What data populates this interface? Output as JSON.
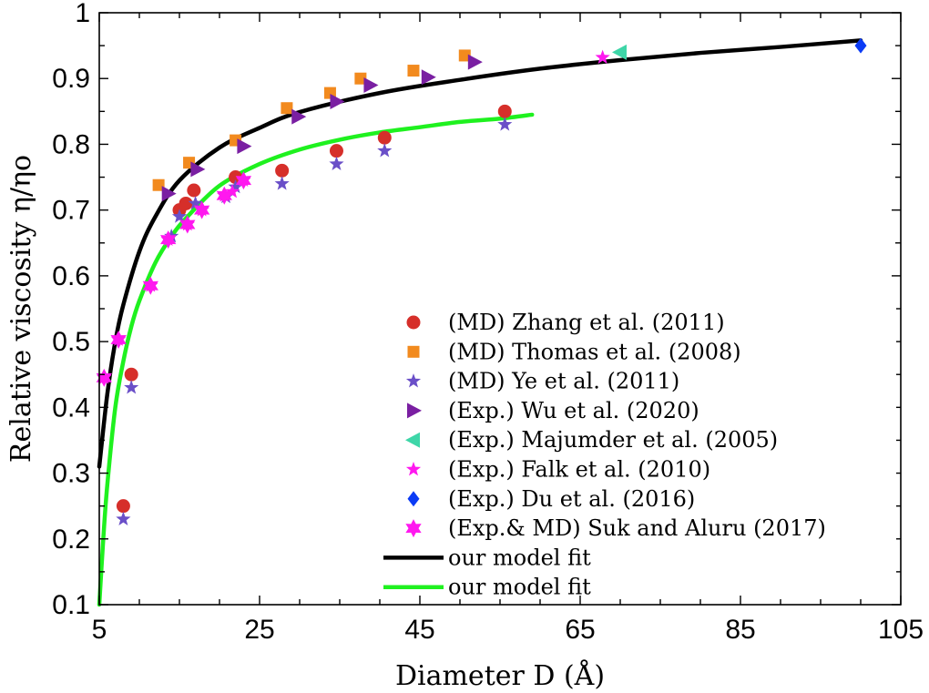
{
  "chart_data": {
    "type": "scatter",
    "title": "",
    "xlabel": "Diameter D (Å)",
    "ylabel": "Relative viscosity η/ηo",
    "xlim": [
      5,
      105
    ],
    "ylim": [
      0.1,
      1.0
    ],
    "xticks": [
      5,
      25,
      45,
      65,
      85,
      105
    ],
    "yticks": [
      0.1,
      0.2,
      0.3,
      0.4,
      0.5,
      0.6,
      0.7,
      0.8,
      0.9,
      1.0
    ],
    "xtick_labels": [
      "5",
      "25",
      "45",
      "65",
      "85",
      "105"
    ],
    "ytick_labels": [
      "0.1",
      "0.2",
      "0.3",
      "0.4",
      "0.5",
      "0.6",
      "0.7",
      "0.8",
      "0.9",
      "1"
    ],
    "grid": false,
    "legend_position": "lower-right",
    "series": [
      {
        "name": "(MD) Zhang et al. (2011)",
        "marker": "circle",
        "color": "#d62f2a",
        "x": [
          8.0,
          9.0,
          15.0,
          15.8,
          16.8,
          22.0,
          27.8,
          34.6,
          40.6,
          55.6
        ],
        "y": [
          0.25,
          0.45,
          0.7,
          0.71,
          0.73,
          0.75,
          0.76,
          0.79,
          0.81,
          0.85
        ]
      },
      {
        "name": "(MD) Thomas et al. (2008)",
        "marker": "square",
        "color": "#f28a1e",
        "x": [
          12.4,
          16.2,
          22.0,
          28.4,
          33.8,
          37.6,
          44.2,
          50.6
        ],
        "y": [
          0.738,
          0.772,
          0.806,
          0.855,
          0.878,
          0.9,
          0.912,
          0.935
        ]
      },
      {
        "name": "(MD) Ye et al. (2011)",
        "marker": "star",
        "color": "#6a4fc8",
        "x": [
          8.0,
          9.0,
          14.0,
          15.0,
          17.0,
          20.8,
          22.0,
          27.8,
          34.6,
          40.6,
          55.6
        ],
        "y": [
          0.23,
          0.43,
          0.66,
          0.69,
          0.71,
          0.72,
          0.735,
          0.74,
          0.77,
          0.79,
          0.83
        ]
      },
      {
        "name": "(Exp.) Wu et al. (2020)",
        "marker": "triangle-right",
        "color": "#7a1fa2",
        "x": [
          13.6,
          17.2,
          23.0,
          29.8,
          34.6,
          38.8,
          46.0,
          51.8
        ],
        "y": [
          0.725,
          0.762,
          0.797,
          0.842,
          0.865,
          0.89,
          0.902,
          0.925
        ]
      },
      {
        "name": "(Exp.) Majumder et al. (2005)",
        "marker": "triangle-left",
        "color": "#3ed6a8",
        "x": [
          70.0
        ],
        "y": [
          0.94
        ]
      },
      {
        "name": "(Exp.) Falk et al. (2010)",
        "marker": "star",
        "color": "#ff18ef",
        "x": [
          5.6,
          7.4,
          11.4,
          13.6,
          16.0,
          17.8,
          20.6,
          21.6,
          23.0,
          67.8
        ],
        "y": [
          0.445,
          0.503,
          0.585,
          0.655,
          0.678,
          0.7,
          0.722,
          0.728,
          0.745,
          0.932
        ]
      },
      {
        "name": "(Exp.) Du et al. (2016)",
        "marker": "diamond",
        "color": "#0b3bf5",
        "x": [
          100.0
        ],
        "y": [
          0.95
        ]
      },
      {
        "name": "(Exp.& MD) Suk and Aluru (2017)",
        "marker": "star6",
        "color": "#ff18ef",
        "x": [
          5.6,
          7.4,
          11.4,
          13.6,
          16.0,
          17.8,
          20.6,
          23.0
        ],
        "y": [
          0.445,
          0.503,
          0.585,
          0.655,
          0.678,
          0.7,
          0.722,
          0.745
        ]
      },
      {
        "name": "our model fit",
        "type": "line",
        "color": "#000000",
        "x": [
          5.0,
          6,
          7,
          8,
          10,
          12,
          15,
          20,
          25,
          30,
          40,
          50,
          60,
          70,
          80,
          90,
          100
        ],
        "y": [
          0.31,
          0.42,
          0.5,
          0.556,
          0.637,
          0.69,
          0.745,
          0.795,
          0.825,
          0.849,
          0.878,
          0.898,
          0.915,
          0.928,
          0.939,
          0.948,
          0.958
        ]
      },
      {
        "name": "our model fit",
        "type": "line",
        "color": "#1ff11f",
        "x": [
          5.0,
          5.5,
          6,
          7,
          8,
          9,
          10,
          12,
          14,
          16,
          20,
          25,
          30,
          35,
          40,
          45,
          50,
          55,
          59
        ],
        "y": [
          0.1,
          0.2,
          0.282,
          0.4,
          0.47,
          0.523,
          0.562,
          0.62,
          0.66,
          0.69,
          0.737,
          0.77,
          0.792,
          0.807,
          0.818,
          0.826,
          0.834,
          0.839,
          0.845
        ]
      }
    ]
  }
}
